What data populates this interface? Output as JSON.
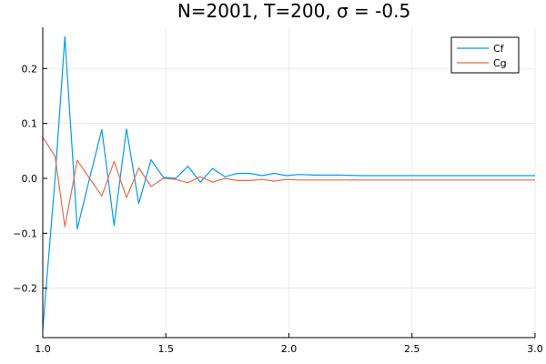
{
  "chart_data": {
    "type": "line",
    "title": "N=2001, T=200, σ = -0.5",
    "xlabel": "",
    "ylabel": "",
    "xlim": [
      1.0,
      3.0
    ],
    "ylim": [
      -0.29,
      0.275
    ],
    "grid": true,
    "legend_position": "top-right",
    "x_ticks": [
      1.0,
      1.5,
      2.0,
      2.5,
      3.0
    ],
    "x_tick_labels": [
      "1.0",
      "1.5",
      "2.0",
      "2.5",
      "3.0"
    ],
    "y_ticks": [
      -0.2,
      -0.1,
      0.0,
      0.1,
      0.2
    ],
    "y_tick_labels": [
      "−0.2",
      "−0.1",
      "0.0",
      "0.1",
      "0.2"
    ],
    "x": [
      1.0,
      1.05,
      1.09,
      1.14,
      1.19,
      1.24,
      1.29,
      1.34,
      1.39,
      1.44,
      1.49,
      1.54,
      1.59,
      1.64,
      1.69,
      1.74,
      1.79,
      1.84,
      1.89,
      1.94,
      1.99,
      2.04,
      2.1,
      2.2,
      2.3,
      2.4,
      2.5,
      2.6,
      2.7,
      2.8,
      2.9,
      3.0
    ],
    "series": [
      {
        "name": "Cf",
        "color": "#009AFA",
        "values": [
          -0.275,
          0.0,
          0.258,
          -0.092,
          0.0,
          0.089,
          -0.086,
          0.09,
          -0.046,
          0.034,
          0.002,
          0.0,
          0.022,
          -0.007,
          0.018,
          0.003,
          0.009,
          0.009,
          0.005,
          0.009,
          0.005,
          0.007,
          0.006,
          0.006,
          0.005,
          0.005,
          0.005,
          0.005,
          0.005,
          0.005,
          0.005,
          0.005
        ]
      },
      {
        "name": "Cg",
        "color": "#E36F47",
        "values": [
          0.075,
          0.04,
          -0.088,
          0.033,
          0.0,
          -0.032,
          0.031,
          -0.035,
          0.019,
          -0.015,
          0.0,
          -0.002,
          -0.008,
          0.003,
          -0.007,
          0.0,
          -0.004,
          -0.004,
          -0.002,
          -0.005,
          -0.002,
          -0.003,
          -0.003,
          -0.003,
          -0.003,
          -0.003,
          -0.003,
          -0.003,
          -0.003,
          -0.003,
          -0.003,
          -0.003
        ]
      }
    ]
  }
}
